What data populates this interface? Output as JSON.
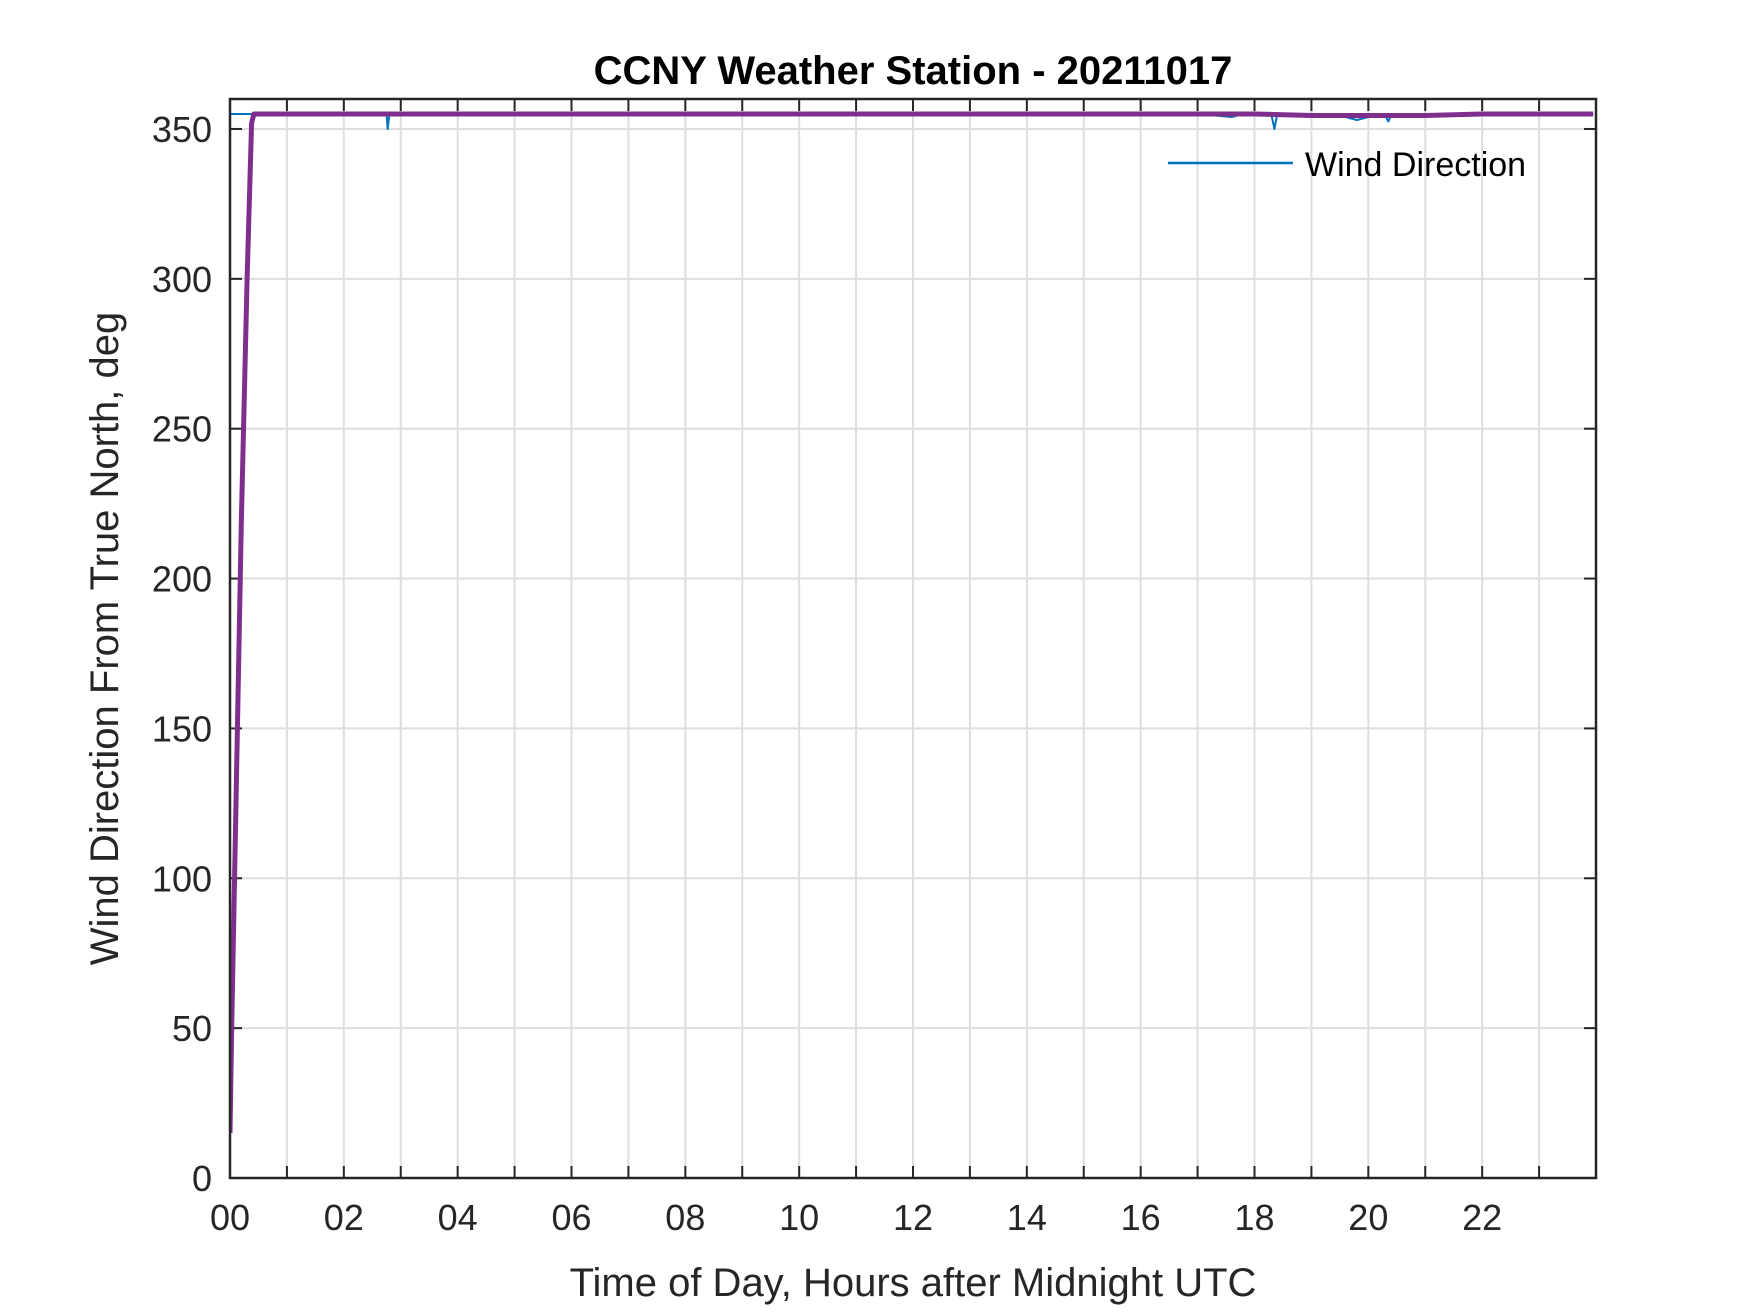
{
  "chart_data": {
    "type": "line",
    "title": "CCNY Weather Station - 20211017",
    "xlabel": "Time of Day, Hours after Midnight UTC",
    "ylabel": "Wind Direction From True North, deg",
    "xlim": [
      0,
      24
    ],
    "ylim": [
      0,
      360
    ],
    "x_ticks": [
      0,
      2,
      4,
      6,
      8,
      10,
      12,
      14,
      16,
      18,
      20,
      22
    ],
    "x_tick_labels": [
      "00",
      "02",
      "04",
      "06",
      "08",
      "10",
      "12",
      "14",
      "16",
      "18",
      "20",
      "22"
    ],
    "y_ticks": [
      0,
      50,
      100,
      150,
      200,
      250,
      300,
      350
    ],
    "y_tick_labels": [
      "0",
      "50",
      "100",
      "150",
      "200",
      "250",
      "300",
      "350"
    ],
    "grid": true,
    "legend_position": "top-right",
    "series": [
      {
        "name": "Wind Direction",
        "color": "#0072BD",
        "x": [
          0.0,
          0.02,
          0.05,
          0.1,
          0.2,
          0.3,
          0.4,
          0.5,
          1.0,
          1.5,
          2.0,
          2.5,
          2.75,
          2.77,
          2.8,
          3.0,
          4.0,
          5.0,
          6.0,
          7.0,
          8.0,
          9.0,
          10.0,
          11.0,
          12.0,
          13.0,
          14.0,
          15.0,
          16.0,
          17.0,
          17.6,
          17.8,
          18.0,
          18.3,
          18.35,
          18.4,
          18.6,
          19.0,
          19.5,
          19.8,
          20.0,
          20.3,
          20.35,
          20.4,
          21.0,
          22.0,
          23.0,
          23.95
        ],
        "values": [
          355,
          355,
          355,
          355,
          355,
          355,
          355,
          355,
          355,
          355,
          355,
          355,
          355,
          350,
          355,
          355.5,
          355,
          355,
          355.5,
          355,
          355,
          355.5,
          355.5,
          355,
          355.5,
          355,
          355.5,
          355,
          355.5,
          355,
          354,
          355,
          355,
          354.5,
          350,
          355,
          354.5,
          354,
          354.5,
          353,
          354,
          354.5,
          352.5,
          354.5,
          354.5,
          355,
          355,
          355
        ]
      },
      {
        "name": "",
        "color": "#7E2F8E",
        "x": [
          0.0,
          0.03,
          0.1,
          0.2,
          0.3,
          0.38,
          0.42,
          0.5,
          1.0,
          2.0,
          3.0,
          4.0,
          5.0,
          6.0,
          7.0,
          8.0,
          9.0,
          10.0,
          11.0,
          12.0,
          13.0,
          14.0,
          15.0,
          16.0,
          17.0,
          18.0,
          19.0,
          20.0,
          21.0,
          22.0,
          23.0,
          23.95
        ],
        "values": [
          15,
          50,
          120,
          220,
          300,
          352,
          355,
          355,
          355,
          355,
          355,
          355,
          355,
          355,
          355,
          355,
          355,
          355,
          355,
          355,
          355,
          355,
          355,
          355,
          355,
          355,
          354.5,
          354.5,
          354.5,
          355,
          355,
          355
        ]
      }
    ]
  }
}
